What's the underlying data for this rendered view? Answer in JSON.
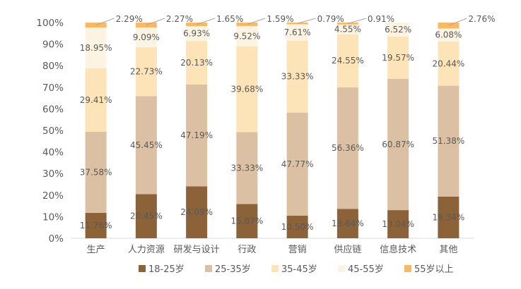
{
  "chart_data": {
    "type": "bar",
    "stacked": true,
    "percent": true,
    "title": "",
    "xlabel": "",
    "ylabel": "",
    "ylim": [
      0,
      100
    ],
    "y_ticks": [
      "0%",
      "10%",
      "20%",
      "30%",
      "40%",
      "50%",
      "60%",
      "70%",
      "80%",
      "90%",
      "100%"
    ],
    "grid": false,
    "legend_position": "bottom",
    "categories": [
      "生产",
      "人力资源",
      "研发与设计",
      "行政",
      "营销",
      "供应链",
      "信息技术",
      "其他"
    ],
    "series": [
      {
        "name": "18-25岁",
        "color": "#8c6239",
        "values": [
          11.76,
          20.45,
          24.09,
          15.87,
          10.5,
          13.64,
          13.04,
          19.34
        ],
        "labels": [
          "11.76%",
          "20.45%",
          "24.09%",
          "15.87%",
          "10.50%",
          "13.64%",
          "13.04%",
          "19.34%"
        ]
      },
      {
        "name": "25-35岁",
        "color": "#dcc0a4",
        "values": [
          37.58,
          45.45,
          47.19,
          33.33,
          47.77,
          56.36,
          60.87,
          51.38
        ],
        "labels": [
          "37.58%",
          "45.45%",
          "47.19%",
          "33.33%",
          "47.77%",
          "56.36%",
          "60.87%",
          "51.38%"
        ]
      },
      {
        "name": "35-45岁",
        "color": "#fce3b8",
        "values": [
          29.41,
          22.73,
          20.13,
          39.68,
          33.33,
          24.55,
          19.57,
          20.44
        ],
        "labels": [
          "29.41%",
          "22.73%",
          "20.13%",
          "39.68%",
          "33.33%",
          "24.55%",
          "19.57%",
          "20.44%"
        ]
      },
      {
        "name": "45-55岁",
        "color": "#fdf3e3",
        "values": [
          18.95,
          9.09,
          6.93,
          9.52,
          7.61,
          4.55,
          6.52,
          6.08
        ],
        "labels": [
          "18.95%",
          "9.09%",
          "6.93%",
          "9.52%",
          "7.61%",
          "4.55%",
          "6.52%",
          "6.08%"
        ]
      },
      {
        "name": "55岁以上",
        "color": "#f8b864",
        "values": [
          2.29,
          2.27,
          1.65,
          1.59,
          0.79,
          0.91,
          0,
          2.76
        ],
        "labels": [
          "2.29%",
          "2.27%",
          "1.65%",
          "1.59%",
          "0.79%",
          "0.91%",
          "",
          "2.76%"
        ]
      }
    ]
  }
}
